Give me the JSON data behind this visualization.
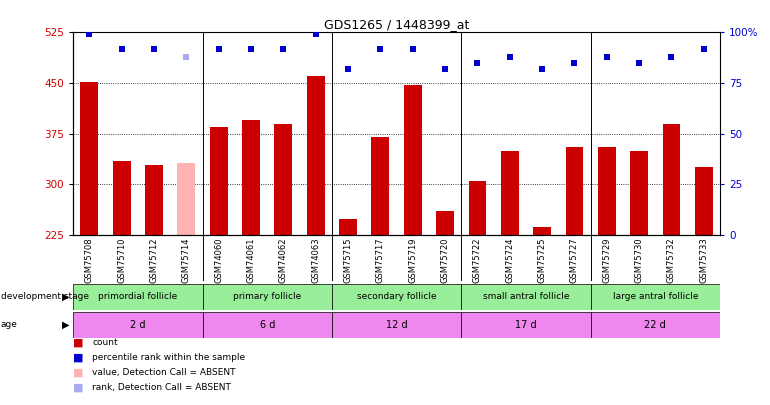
{
  "title": "GDS1265 / 1448399_at",
  "samples": [
    "GSM75708",
    "GSM75710",
    "GSM75712",
    "GSM75714",
    "GSM74060",
    "GSM74061",
    "GSM74062",
    "GSM74063",
    "GSM75715",
    "GSM75717",
    "GSM75719",
    "GSM75720",
    "GSM75722",
    "GSM75724",
    "GSM75725",
    "GSM75727",
    "GSM75729",
    "GSM75730",
    "GSM75732",
    "GSM75733"
  ],
  "bar_values": [
    452,
    335,
    328,
    332,
    385,
    395,
    390,
    460,
    248,
    370,
    447,
    260,
    305,
    350,
    237,
    355,
    355,
    350,
    390,
    325
  ],
  "bar_colors": [
    "#cc0000",
    "#cc0000",
    "#cc0000",
    "#ffb3b3",
    "#cc0000",
    "#cc0000",
    "#cc0000",
    "#cc0000",
    "#cc0000",
    "#cc0000",
    "#cc0000",
    "#cc0000",
    "#cc0000",
    "#cc0000",
    "#cc0000",
    "#cc0000",
    "#cc0000",
    "#cc0000",
    "#cc0000",
    "#cc0000"
  ],
  "rank_values": [
    99,
    92,
    92,
    88,
    92,
    92,
    92,
    99,
    82,
    92,
    92,
    82,
    85,
    88,
    82,
    85,
    88,
    85,
    88,
    92
  ],
  "rank_colors": [
    "#0000cc",
    "#0000cc",
    "#0000cc",
    "#aaaaee",
    "#0000cc",
    "#0000cc",
    "#0000cc",
    "#0000cc",
    "#0000cc",
    "#0000cc",
    "#0000cc",
    "#0000cc",
    "#0000cc",
    "#0000cc",
    "#0000cc",
    "#0000cc",
    "#0000cc",
    "#0000cc",
    "#0000cc",
    "#0000cc"
  ],
  "ylim_left": [
    225,
    525
  ],
  "ylim_right": [
    0,
    100
  ],
  "yticks_left": [
    225,
    300,
    375,
    450,
    525
  ],
  "yticks_right": [
    0,
    25,
    50,
    75,
    100
  ],
  "grid_lines": [
    300,
    375,
    450
  ],
  "group_boundaries": [
    4,
    8,
    12,
    16
  ],
  "dev_stage_groups": [
    {
      "label": "primordial follicle",
      "start": 0,
      "end": 4,
      "color": "#99ee99"
    },
    {
      "label": "primary follicle",
      "start": 4,
      "end": 8,
      "color": "#99ee99"
    },
    {
      "label": "secondary follicle",
      "start": 8,
      "end": 12,
      "color": "#99ee99"
    },
    {
      "label": "small antral follicle",
      "start": 12,
      "end": 16,
      "color": "#99ee99"
    },
    {
      "label": "large antral follicle",
      "start": 16,
      "end": 20,
      "color": "#99ee99"
    }
  ],
  "age_groups": [
    {
      "label": "2 d",
      "start": 0,
      "end": 4,
      "color": "#ee88ee"
    },
    {
      "label": "6 d",
      "start": 4,
      "end": 8,
      "color": "#ee88ee"
    },
    {
      "label": "12 d",
      "start": 8,
      "end": 12,
      "color": "#ee88ee"
    },
    {
      "label": "17 d",
      "start": 12,
      "end": 16,
      "color": "#ee88ee"
    },
    {
      "label": "22 d",
      "start": 16,
      "end": 20,
      "color": "#ee88ee"
    }
  ],
  "sample_bg_color": "#cccccc",
  "background_color": "#ffffff",
  "tick_label_color_left": "#cc0000",
  "tick_label_color_right": "#0000cc",
  "bar_width": 0.55
}
